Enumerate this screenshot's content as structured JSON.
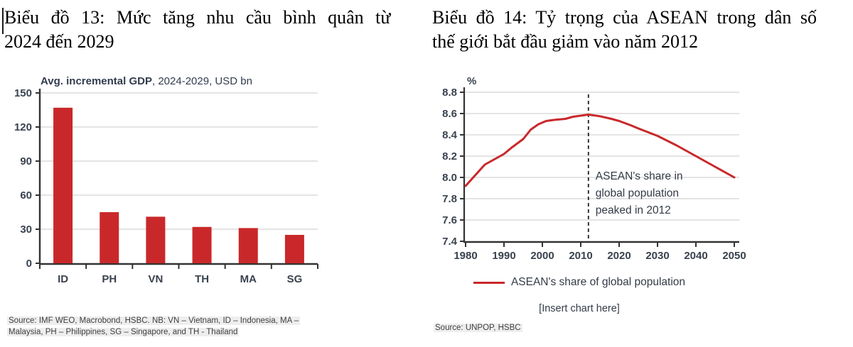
{
  "left": {
    "title_line1": "Biểu đồ 13: Mức tăng nhu cầu bình quân từ",
    "title_line2": "2024 đến 2029",
    "source_line1": "Source: IMF WEO, Macrobond, HSBC. NB: VN – Vietnam, ID – Indonesia, MA –",
    "source_line2": "Malaysia, PH – Philippines, SG – Singapore, and TH - Thailand"
  },
  "right": {
    "title_line1": "Biểu đồ 14: Tỷ trọng của ASEAN trong dân số",
    "title_line2": "thế giới bắt đầu giảm vào năm 2012",
    "legend_label": "ASEAN's share of global population",
    "insert_note": "[Insert chart here]",
    "source": "Source: UNPOP, HSBC"
  },
  "colors": {
    "red": "#c9282a",
    "grid": "#dcdcdc",
    "axis": "#333333",
    "label": "#39424e",
    "annotation": "#333b46",
    "source_bg": "#eeeeee"
  },
  "chart_data": [
    {
      "type": "bar",
      "title_bold": "Avg. incremental GDP",
      "title_rest": ", 2024-2029, USD bn",
      "categories": [
        "ID",
        "PH",
        "VN",
        "TH",
        "MA",
        "SG"
      ],
      "values": [
        137,
        45,
        41,
        32,
        31,
        25
      ],
      "ylabel": "USD bn",
      "ylim": [
        0,
        150
      ],
      "yticks": [
        0,
        30,
        60,
        90,
        120,
        150
      ],
      "grid": true,
      "legend_position": "none"
    },
    {
      "type": "line",
      "ylabel": "%",
      "series": [
        {
          "name": "ASEAN's share of global population",
          "x": [
            1980,
            1982,
            1985,
            1988,
            1990,
            1992,
            1995,
            1997,
            1999,
            2001,
            2003,
            2006,
            2008,
            2010,
            2012,
            2015,
            2018,
            2020,
            2023,
            2025,
            2030,
            2035,
            2040,
            2045,
            2050
          ],
          "values": [
            7.92,
            8.0,
            8.12,
            8.18,
            8.22,
            8.28,
            8.36,
            8.45,
            8.5,
            8.53,
            8.54,
            8.55,
            8.57,
            8.58,
            8.59,
            8.575,
            8.55,
            8.53,
            8.49,
            8.46,
            8.39,
            8.3,
            8.2,
            8.1,
            8.0
          ]
        }
      ],
      "xticks": [
        1980,
        1990,
        2000,
        2010,
        2020,
        2030,
        2040,
        2050
      ],
      "yticks": [
        7.4,
        7.6,
        7.8,
        8.0,
        8.2,
        8.4,
        8.6,
        8.8
      ],
      "xlim": [
        1980,
        2050
      ],
      "ylim": [
        7.4,
        8.8
      ],
      "grid": true,
      "dashed_line_x": 2012,
      "annotation_lines": [
        "ASEAN's share in",
        "global population",
        "peaked in 2012"
      ],
      "legend_position": "bottom"
    }
  ]
}
